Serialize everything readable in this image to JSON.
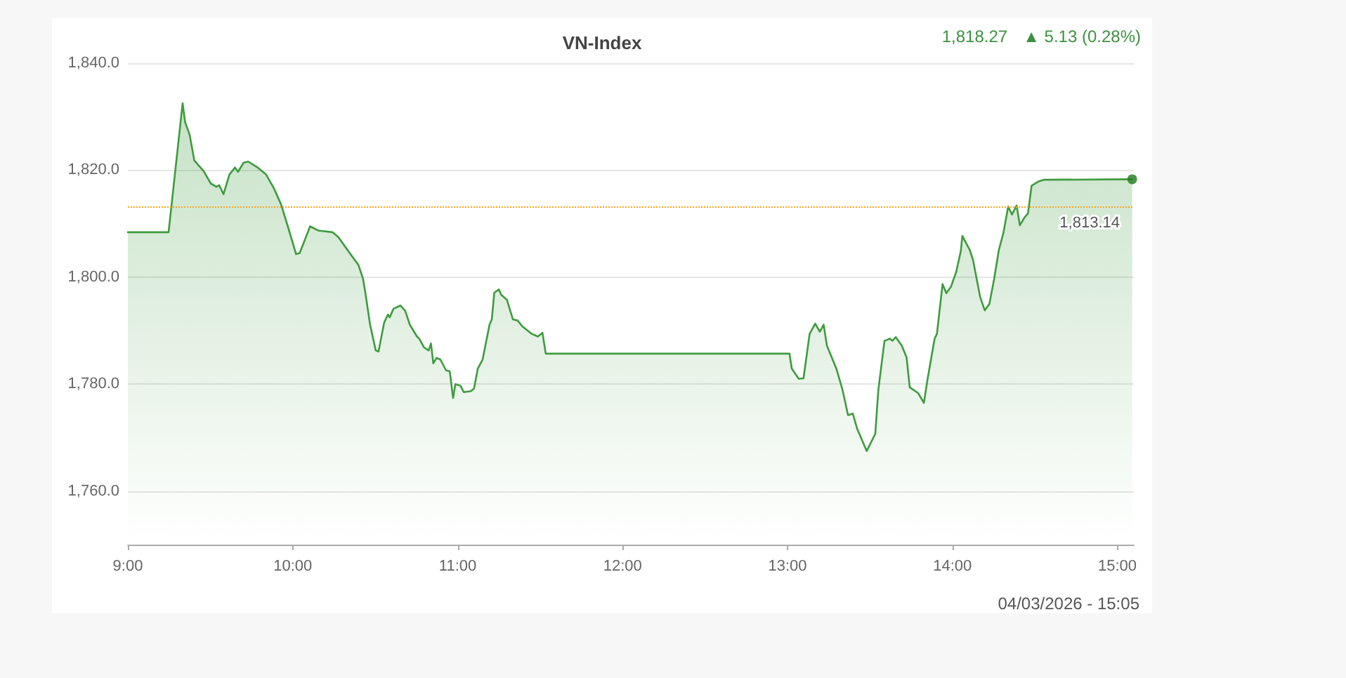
{
  "chart_data": {
    "type": "area",
    "title": "VN-Index",
    "annotations": [
      "1,818.27",
      "▲ 5.13 (0.28%)",
      "04/03/2026 - 15:05"
    ],
    "xlim": [
      9,
      15.1
    ],
    "xticks": [
      {
        "value": 9,
        "label": "9:00"
      },
      {
        "value": 10,
        "label": "10:00"
      },
      {
        "value": 11,
        "label": "11:00"
      },
      {
        "value": 12,
        "label": "12:00"
      },
      {
        "value": 13,
        "label": "13:00"
      },
      {
        "value": 14,
        "label": "14:00"
      },
      {
        "value": 15,
        "label": "15:00"
      }
    ],
    "ylim": [
      1750,
      1840
    ],
    "yticks": [
      {
        "value": 1760,
        "label": "1,760.0"
      },
      {
        "value": 1780,
        "label": "1,780.0"
      },
      {
        "value": 1800,
        "label": "1,800.0"
      },
      {
        "value": 1820,
        "label": "1,820.0"
      },
      {
        "value": 1840,
        "label": "1,840.0"
      }
    ],
    "grid": "y",
    "marker": "none",
    "ref_lines": [
      {
        "axis": "y",
        "value": 1813.14,
        "label": "1,813.14",
        "color": "#f5a623",
        "line_style": "dotted"
      }
    ],
    "series": [
      {
        "color": "#3e9b3e",
        "x": [
          9.0,
          9.247,
          9.332,
          9.347,
          9.375,
          9.403,
          9.46,
          9.503,
          9.537,
          9.554,
          9.58,
          9.616,
          9.65,
          9.668,
          9.702,
          9.73,
          9.787,
          9.838,
          9.886,
          9.929,
          9.972,
          10.02,
          10.042,
          10.105,
          10.156,
          10.241,
          10.276,
          10.355,
          10.398,
          10.426,
          10.44,
          10.469,
          10.503,
          10.52,
          10.554,
          10.577,
          10.588,
          10.611,
          10.653,
          10.682,
          10.71,
          10.753,
          10.767,
          10.795,
          10.824,
          10.838,
          10.852,
          10.872,
          10.895,
          10.929,
          10.952,
          10.972,
          10.986,
          11.017,
          11.037,
          11.08,
          11.099,
          11.122,
          11.151,
          11.193,
          11.207,
          11.222,
          11.25,
          11.264,
          11.298,
          11.335,
          11.363,
          11.392,
          11.449,
          11.486,
          11.514,
          11.534,
          13.012,
          13.026,
          13.068,
          13.097,
          13.134,
          13.168,
          13.196,
          13.219,
          13.239,
          13.296,
          13.333,
          13.367,
          13.396,
          13.423,
          13.48,
          13.532,
          13.551,
          13.588,
          13.622,
          13.636,
          13.656,
          13.693,
          13.722,
          13.741,
          13.793,
          13.827,
          13.85,
          13.892,
          13.906,
          13.94,
          13.963,
          13.991,
          14.023,
          14.051,
          14.06,
          14.105,
          14.125,
          14.168,
          14.196,
          14.224,
          14.253,
          14.281,
          14.31,
          14.338,
          14.361,
          14.389,
          14.409,
          14.438,
          14.458,
          14.48,
          14.523,
          14.551,
          15.09
        ],
        "values": [
          1808.4,
          1808.4,
          1832.5,
          1829.0,
          1826.6,
          1821.8,
          1819.8,
          1817.5,
          1816.9,
          1817.2,
          1815.5,
          1819.2,
          1820.5,
          1819.7,
          1821.4,
          1821.6,
          1820.5,
          1819.2,
          1816.6,
          1813.6,
          1809.3,
          1804.3,
          1804.5,
          1809.5,
          1808.7,
          1808.4,
          1807.5,
          1804.1,
          1802.3,
          1799.7,
          1797.1,
          1791.1,
          1786.3,
          1786.1,
          1791.5,
          1793.0,
          1792.5,
          1794.1,
          1794.7,
          1793.7,
          1791.1,
          1788.9,
          1788.5,
          1786.9,
          1786.3,
          1787.6,
          1783.9,
          1784.9,
          1784.6,
          1782.6,
          1782.4,
          1777.4,
          1780.0,
          1779.7,
          1778.5,
          1778.7,
          1779.2,
          1782.9,
          1784.6,
          1791.1,
          1792.1,
          1797.1,
          1797.7,
          1796.7,
          1795.8,
          1792.1,
          1791.9,
          1790.8,
          1789.4,
          1788.9,
          1789.6,
          1785.7,
          1785.7,
          1782.9,
          1781.0,
          1781.1,
          1789.4,
          1791.3,
          1789.8,
          1791.1,
          1787.2,
          1782.9,
          1779.0,
          1774.2,
          1774.5,
          1771.6,
          1767.5,
          1770.7,
          1779.0,
          1788.1,
          1788.5,
          1788.1,
          1788.8,
          1787.2,
          1785.0,
          1779.4,
          1778.3,
          1776.5,
          1781.1,
          1788.5,
          1789.4,
          1798.7,
          1797.0,
          1798.2,
          1801.0,
          1804.9,
          1807.7,
          1805.1,
          1803.2,
          1796.3,
          1793.8,
          1795.0,
          1799.7,
          1805.0,
          1808.4,
          1813.2,
          1811.7,
          1813.4,
          1809.7,
          1811.2,
          1811.9,
          1817.1,
          1817.9,
          1818.2,
          1818.3
        ]
      },
      {
        "type": "scatter",
        "marker": "circle",
        "color": "#1e7b1e",
        "x": [
          15.09
        ],
        "values": [
          1818.3
        ]
      }
    ]
  }
}
